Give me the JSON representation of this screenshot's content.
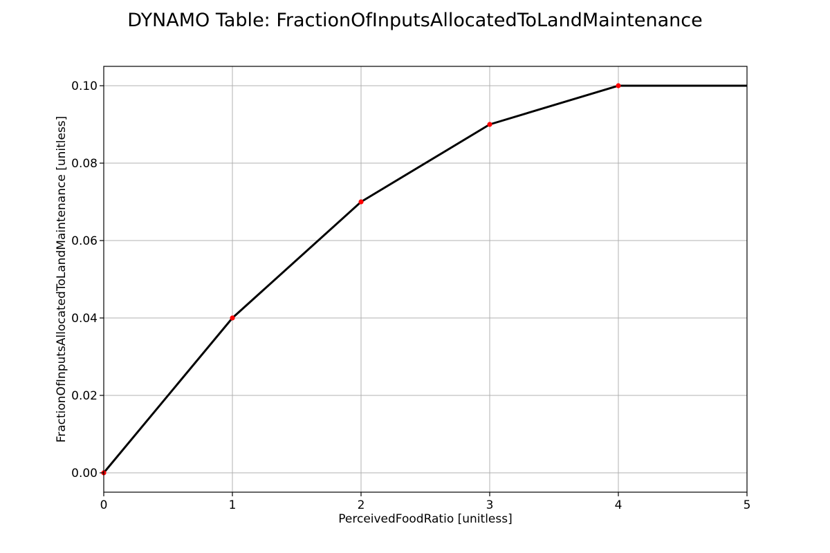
{
  "chart_data": {
    "type": "line",
    "title": "DYNAMO Table: FractionOfInputsAllocatedToLandMaintenance",
    "xlabel": "PerceivedFoodRatio [unitless]",
    "ylabel": "FractionOfInputsAllocatedToLandMaintenance [unitless]",
    "xlim": [
      0,
      5
    ],
    "ylim": [
      -0.005,
      0.105
    ],
    "x_ticks": [
      0,
      1,
      2,
      3,
      4,
      5
    ],
    "x_tick_labels": [
      "0",
      "1",
      "2",
      "3",
      "4",
      "5"
    ],
    "y_ticks": [
      0.0,
      0.02,
      0.04,
      0.06,
      0.08,
      0.1
    ],
    "y_tick_labels": [
      "0.00",
      "0.02",
      "0.04",
      "0.06",
      "0.08",
      "0.10"
    ],
    "grid": true,
    "series": [
      {
        "x": [
          0,
          1,
          2,
          3,
          4,
          5
        ],
        "y": [
          0.0,
          0.04,
          0.07,
          0.09,
          0.1,
          0.1
        ],
        "color": "#000000"
      }
    ],
    "markers": {
      "x": [
        0,
        1,
        2,
        3,
        4
      ],
      "y": [
        0.0,
        0.04,
        0.07,
        0.09,
        0.1
      ],
      "color": "#ff0000"
    }
  }
}
